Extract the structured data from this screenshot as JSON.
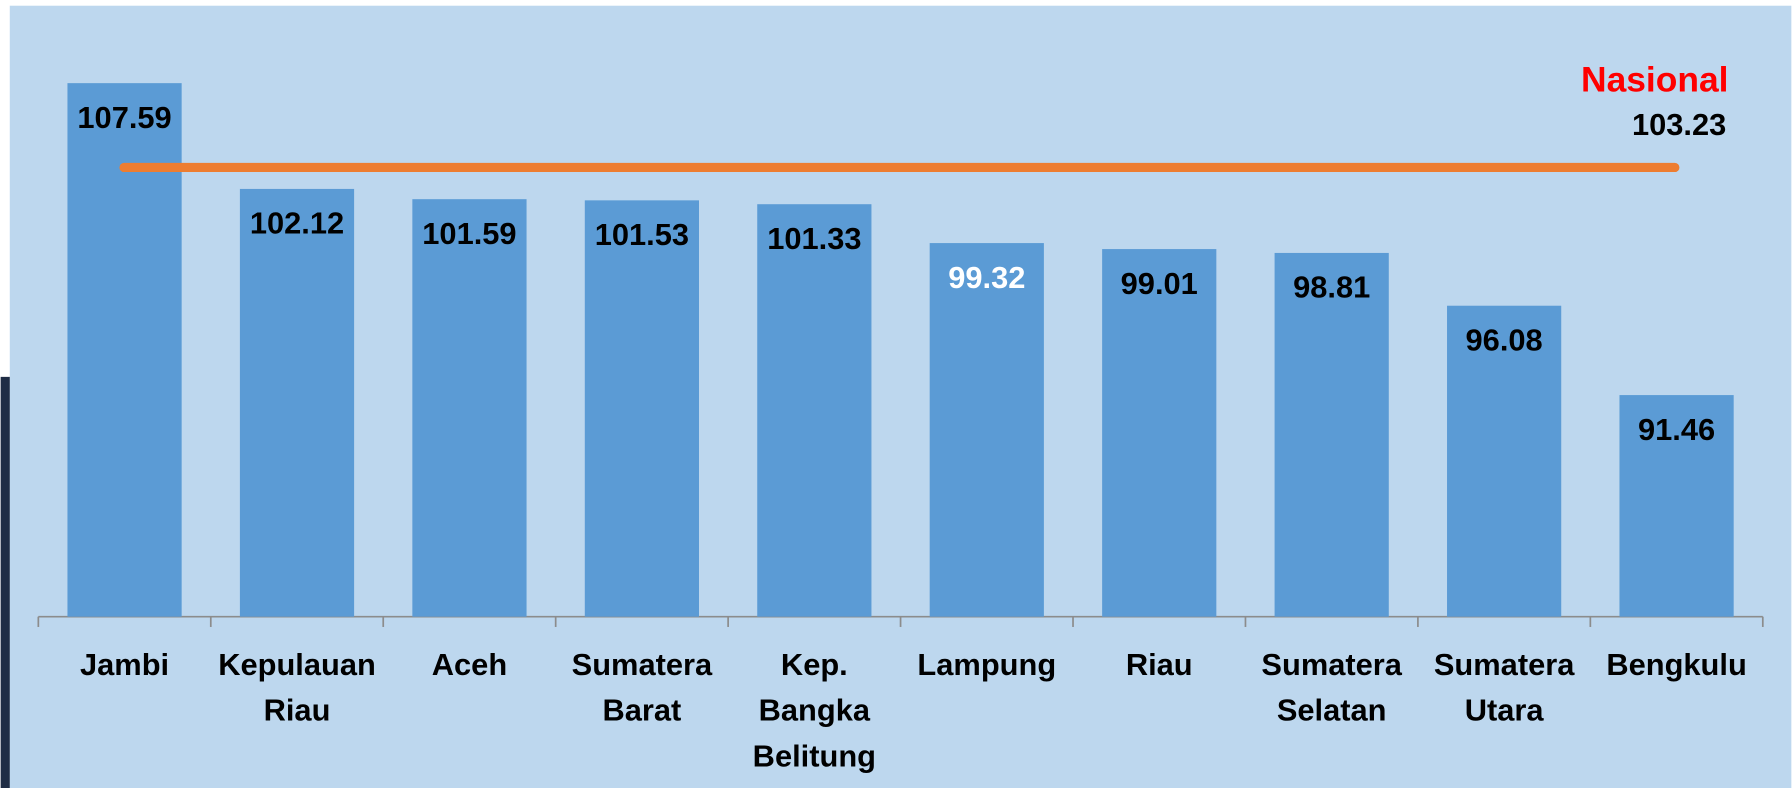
{
  "chart_data": {
    "type": "bar",
    "categories": [
      "Jambi",
      "Kepulauan Riau",
      "Aceh",
      "Sumatera Barat",
      "Kep. Bangka Belitung",
      "Lampung",
      "Riau",
      "Sumatera Selatan",
      "Sumatera Utara",
      "Bengkulu"
    ],
    "values": [
      107.59,
      102.12,
      101.59,
      101.53,
      101.33,
      99.32,
      99.01,
      98.81,
      96.08,
      91.46
    ],
    "color": "#5b9bd5",
    "value_label_colors": [
      "#000000",
      "#000000",
      "#000000",
      "#000000",
      "#000000",
      "#ffffff",
      "#000000",
      "#000000",
      "#000000",
      "#000000"
    ],
    "ylim": [
      80,
      110
    ],
    "reference_line": {
      "name": "Nasional",
      "value": 103.23,
      "color": "#ed7d31",
      "name_color": "#ff0000"
    }
  }
}
